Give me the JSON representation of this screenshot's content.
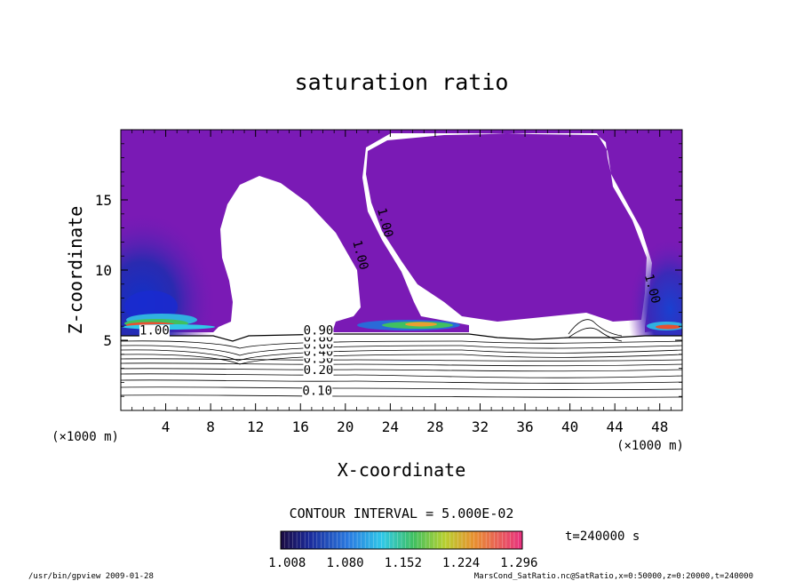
{
  "chart_data": {
    "type": "heatmap",
    "title": "saturation ratio",
    "xlabel": "X-coordinate",
    "ylabel": "Z-coordinate",
    "x_unit": "(×1000 m)",
    "y_unit": "(×1000 m)",
    "xlim": [
      0,
      50
    ],
    "ylim": [
      0,
      20
    ],
    "x_ticks": [
      4,
      8,
      12,
      16,
      20,
      24,
      28,
      32,
      36,
      40,
      44,
      48
    ],
    "y_ticks": [
      5,
      10,
      15
    ],
    "contour_interval_text": "CONTOUR INTERVAL = 5.000E-02",
    "time_label": "t=240000 s",
    "colorbar": {
      "range": [
        1.0,
        1.3
      ],
      "tick_labels": [
        "1.008",
        "1.080",
        "1.152",
        "1.224",
        "1.296"
      ]
    },
    "contour_labels": [
      {
        "text": "0.10",
        "x": 17.5,
        "z": 1.1
      },
      {
        "text": "0.20",
        "x": 17.6,
        "z": 2.6
      },
      {
        "text": "0.30",
        "x": 17.6,
        "z": 3.4
      },
      {
        "text": "0.40",
        "x": 17.6,
        "z": 3.9
      },
      {
        "text": "0.60",
        "x": 17.6,
        "z": 4.4
      },
      {
        "text": "0.80",
        "x": 17.6,
        "z": 4.9
      },
      {
        "text": "0.90",
        "x": 17.6,
        "z": 5.4
      },
      {
        "text": "1.00",
        "x": 3.0,
        "z": 5.4
      },
      {
        "text": "1.00",
        "x": 23.2,
        "z": 13.3
      },
      {
        "text": "1.00",
        "x": 21.0,
        "z": 11.0
      },
      {
        "text": "1.00",
        "x": 47.0,
        "z": 8.6
      }
    ],
    "footer_left": "/usr/bin/gpview  2009-01-28",
    "footer_right": "MarsCond_SatRatio.nc@SatRatio,x=0:50000,z=0:20000,t=240000"
  },
  "colors": {
    "supersaturated_fill": "#7a1ab5",
    "contour_line": "#000000"
  }
}
